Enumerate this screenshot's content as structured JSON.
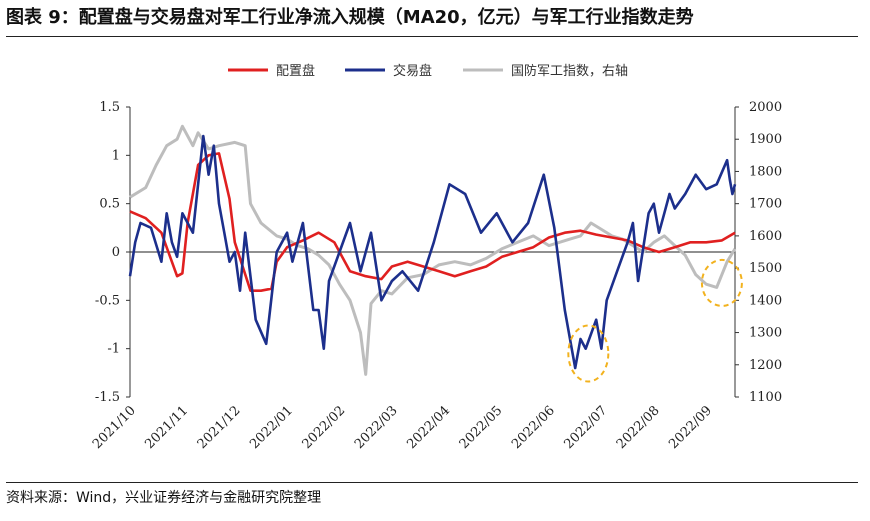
{
  "figure": {
    "title": "图表 9：配置盘与交易盘对军工行业净流入规模（MA20，亿元）与军工行业指数走势",
    "source": "资料来源：Wind，兴业证券经济与金融研究院整理"
  },
  "chart_data": {
    "type": "line",
    "x_tick_labels": [
      "2021/10",
      "2021/11",
      "2021/12",
      "2022/01",
      "2022/02",
      "2022/03",
      "2022/04",
      "2022/05",
      "2022/06",
      "2022/07",
      "2022/08",
      "2022/09"
    ],
    "y_left": {
      "ticks": [
        "1.5",
        "1",
        "0.5",
        "0",
        "-0.5",
        "-1",
        "-1.5"
      ],
      "lim": [
        -1.5,
        1.5
      ]
    },
    "y_right": {
      "ticks": [
        "2000",
        "1900",
        "1800",
        "1700",
        "1600",
        "1500",
        "1400",
        "1300",
        "1200",
        "1100"
      ],
      "lim": [
        1100,
        2000
      ]
    },
    "legend": [
      "配置盘",
      "交易盘",
      "国防军工指数，右轴"
    ],
    "series": [
      {
        "name": "配置盘",
        "axis": "left",
        "color": "#e02020",
        "x": [
          0,
          0.3,
          0.6,
          0.9,
          1.0,
          1.1,
          1.3,
          1.5,
          1.7,
          1.9,
          2.0,
          2.3,
          2.5,
          2.7,
          2.8,
          3.0,
          3.3,
          3.6,
          3.9,
          4.2,
          4.5,
          4.8,
          5.0,
          5.3,
          5.6,
          5.9,
          6.2,
          6.5,
          6.8,
          7.1,
          7.4,
          7.7,
          8.0,
          8.3,
          8.6,
          8.9,
          9.2,
          9.5,
          9.8,
          10.1,
          10.4,
          10.7,
          11.0,
          11.3,
          11.55
        ],
        "y": [
          0.42,
          0.35,
          0.2,
          -0.25,
          -0.22,
          0.3,
          0.9,
          1.0,
          1.02,
          0.55,
          0.1,
          -0.4,
          -0.4,
          -0.38,
          -0.1,
          0.05,
          0.12,
          0.2,
          0.1,
          -0.2,
          -0.25,
          -0.28,
          -0.15,
          -0.1,
          -0.15,
          -0.2,
          -0.25,
          -0.2,
          -0.15,
          -0.05,
          0.0,
          0.05,
          0.15,
          0.2,
          0.22,
          0.18,
          0.15,
          0.12,
          0.05,
          0.0,
          0.05,
          0.1,
          0.1,
          0.12,
          0.2
        ]
      },
      {
        "name": "交易盘",
        "axis": "left",
        "color": "#1c2f8c",
        "x": [
          0,
          0.1,
          0.2,
          0.4,
          0.6,
          0.7,
          0.8,
          0.9,
          1.0,
          1.2,
          1.4,
          1.5,
          1.6,
          1.7,
          1.8,
          1.9,
          2.0,
          2.1,
          2.2,
          2.4,
          2.6,
          2.8,
          3.0,
          3.1,
          3.3,
          3.5,
          3.6,
          3.7,
          3.8,
          4.0,
          4.2,
          4.4,
          4.6,
          4.8,
          5.0,
          5.2,
          5.5,
          5.8,
          6.1,
          6.4,
          6.7,
          7.0,
          7.3,
          7.6,
          7.9,
          8.1,
          8.3,
          8.5,
          8.6,
          8.7,
          8.9,
          9.0,
          9.1,
          9.3,
          9.5,
          9.6,
          9.7,
          9.9,
          10.0,
          10.1,
          10.2,
          10.3,
          10.4,
          10.6,
          10.8,
          11.0,
          11.2,
          11.4,
          11.45,
          11.5,
          11.55
        ],
        "y": [
          -0.25,
          0.1,
          0.3,
          0.25,
          -0.1,
          0.4,
          0.1,
          -0.05,
          0.4,
          0.2,
          1.2,
          0.8,
          1.1,
          0.5,
          0.2,
          -0.1,
          0.0,
          -0.4,
          0.2,
          -0.7,
          -0.95,
          0.0,
          0.2,
          -0.1,
          0.3,
          -0.6,
          -0.6,
          -1.0,
          -0.3,
          0.0,
          0.3,
          -0.2,
          0.2,
          -0.5,
          -0.3,
          -0.2,
          -0.4,
          0.1,
          0.7,
          0.6,
          0.2,
          0.4,
          0.1,
          0.3,
          0.8,
          0.25,
          -0.6,
          -1.2,
          -0.9,
          -1.0,
          -0.7,
          -1.0,
          -0.5,
          -0.2,
          0.1,
          0.3,
          -0.3,
          0.4,
          0.5,
          0.2,
          0.4,
          0.6,
          0.45,
          0.6,
          0.8,
          0.65,
          0.7,
          0.95,
          0.75,
          0.6,
          0.7
        ]
      },
      {
        "name": "国防军工指数，右轴",
        "axis": "right",
        "color": "#bdbdbd",
        "x": [
          0,
          0.3,
          0.5,
          0.7,
          0.9,
          1.0,
          1.2,
          1.3,
          1.5,
          1.7,
          2.0,
          2.2,
          2.3,
          2.5,
          2.8,
          3.0,
          3.2,
          3.4,
          3.6,
          3.8,
          4.0,
          4.2,
          4.4,
          4.5,
          4.6,
          4.8,
          5.0,
          5.3,
          5.6,
          5.9,
          6.2,
          6.5,
          6.8,
          7.1,
          7.4,
          7.7,
          8.0,
          8.2,
          8.4,
          8.6,
          8.8,
          9.0,
          9.2,
          9.4,
          9.6,
          9.8,
          10.0,
          10.2,
          10.4,
          10.6,
          10.8,
          11.0,
          11.2,
          11.4,
          11.55
        ],
        "y": [
          1720,
          1750,
          1820,
          1880,
          1900,
          1940,
          1880,
          1920,
          1870,
          1880,
          1890,
          1880,
          1700,
          1640,
          1600,
          1590,
          1570,
          1560,
          1540,
          1510,
          1450,
          1400,
          1300,
          1170,
          1390,
          1430,
          1420,
          1470,
          1480,
          1510,
          1520,
          1510,
          1530,
          1560,
          1580,
          1600,
          1570,
          1580,
          1590,
          1600,
          1640,
          1620,
          1600,
          1590,
          1570,
          1550,
          1580,
          1600,
          1570,
          1540,
          1480,
          1450,
          1440,
          1520,
          1560
        ]
      }
    ]
  }
}
